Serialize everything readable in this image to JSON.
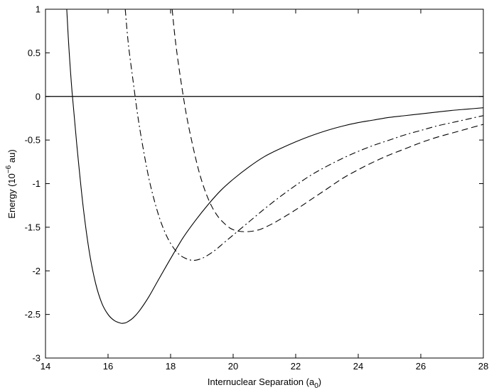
{
  "chart_data": {
    "type": "line",
    "xlabel": {
      "text": "Internuclear Separation (a",
      "sub": "0",
      "suffix": ")"
    },
    "ylabel": {
      "text": "Energy (10",
      "sup": "−6",
      "suffix": " au)"
    },
    "xlim": [
      14,
      28
    ],
    "ylim": [
      -3,
      1
    ],
    "xticks": [
      14,
      16,
      18,
      20,
      22,
      24,
      26,
      28
    ],
    "yticks": [
      -3,
      -2.5,
      -2,
      -1.5,
      -1,
      -0.5,
      0,
      0.5,
      1
    ],
    "grid": false,
    "reference_line": {
      "y": 0
    },
    "series": [
      {
        "style": "solid",
        "color": "#000000",
        "x": [
          14.68,
          14.75,
          14.85,
          15.0,
          15.2,
          15.4,
          15.6,
          15.8,
          16.0,
          16.2,
          16.4,
          16.5,
          16.6,
          16.8,
          17.0,
          17.3,
          17.6,
          18.0,
          18.4,
          18.8,
          19.2,
          19.6,
          20.0,
          20.5,
          21.0,
          21.5,
          22.0,
          22.5,
          23.0,
          23.5,
          24.0,
          24.5,
          25.0,
          25.5,
          26.0,
          26.5,
          27.0,
          27.5,
          28.0
        ],
        "y": [
          1.0,
          0.55,
          0.05,
          -0.55,
          -1.25,
          -1.78,
          -2.14,
          -2.37,
          -2.5,
          -2.57,
          -2.6,
          -2.6,
          -2.59,
          -2.54,
          -2.46,
          -2.3,
          -2.11,
          -1.86,
          -1.62,
          -1.42,
          -1.24,
          -1.08,
          -0.95,
          -0.81,
          -0.69,
          -0.6,
          -0.52,
          -0.45,
          -0.39,
          -0.34,
          -0.3,
          -0.27,
          -0.24,
          -0.22,
          -0.2,
          -0.18,
          -0.16,
          -0.145,
          -0.13
        ]
      },
      {
        "style": "dash-dot",
        "color": "#000000",
        "x": [
          16.55,
          16.65,
          16.8,
          16.95,
          17.1,
          17.3,
          17.5,
          17.7,
          17.9,
          18.1,
          18.3,
          18.5,
          18.7,
          18.9,
          19.1,
          19.4,
          19.7,
          20.0,
          20.5,
          21.0,
          21.5,
          22.0,
          22.5,
          23.0,
          23.5,
          24.0,
          24.5,
          25.0,
          25.5,
          26.0,
          26.5,
          27.0,
          27.5,
          28.0
        ],
        "y": [
          1.0,
          0.6,
          0.18,
          -0.22,
          -0.55,
          -0.93,
          -1.22,
          -1.45,
          -1.62,
          -1.74,
          -1.82,
          -1.86,
          -1.88,
          -1.87,
          -1.84,
          -1.77,
          -1.68,
          -1.59,
          -1.44,
          -1.29,
          -1.15,
          -1.02,
          -0.9,
          -0.8,
          -0.71,
          -0.63,
          -0.56,
          -0.5,
          -0.44,
          -0.39,
          -0.34,
          -0.3,
          -0.26,
          -0.22
        ]
      },
      {
        "style": "dashed",
        "color": "#000000",
        "x": [
          18.05,
          18.15,
          18.3,
          18.5,
          18.7,
          18.9,
          19.1,
          19.3,
          19.5,
          19.7,
          19.9,
          20.1,
          20.3,
          20.5,
          20.7,
          20.9,
          21.2,
          21.5,
          22.0,
          22.5,
          23.0,
          23.5,
          24.0,
          24.5,
          25.0,
          25.5,
          26.0,
          26.5,
          27.0,
          27.5,
          28.0
        ],
        "y": [
          1.0,
          0.65,
          0.25,
          -0.2,
          -0.55,
          -0.85,
          -1.08,
          -1.25,
          -1.37,
          -1.45,
          -1.51,
          -1.54,
          -1.55,
          -1.55,
          -1.54,
          -1.52,
          -1.47,
          -1.41,
          -1.3,
          -1.18,
          -1.06,
          -0.94,
          -0.84,
          -0.75,
          -0.67,
          -0.6,
          -0.53,
          -0.47,
          -0.42,
          -0.37,
          -0.32
        ]
      }
    ]
  }
}
